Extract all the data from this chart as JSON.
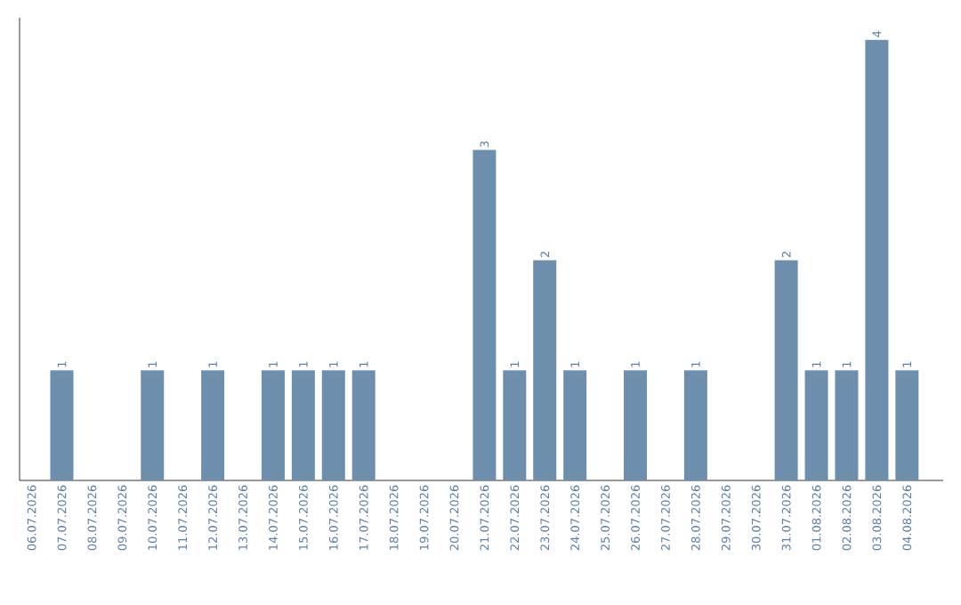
{
  "chart_data": {
    "type": "bar",
    "categories": [
      "06.07.2026",
      "07.07.2026",
      "08.07.2026",
      "09.07.2026",
      "10.07.2026",
      "11.07.2026",
      "12.07.2026",
      "13.07.2026",
      "14.07.2026",
      "15.07.2026",
      "16.07.2026",
      "17.07.2026",
      "18.07.2026",
      "19.07.2026",
      "20.07.2026",
      "21.07.2026",
      "22.07.2026",
      "23.07.2026",
      "24.07.2026",
      "25.07.2026",
      "26.07.2026",
      "27.07.2026",
      "28.07.2026",
      "29.07.2026",
      "30.07.2026",
      "31.07.2026",
      "01.08.2026",
      "02.08.2026",
      "03.08.2026",
      "04.08.2026"
    ],
    "values": [
      0,
      1,
      0,
      0,
      1,
      0,
      1,
      0,
      1,
      1,
      1,
      1,
      0,
      0,
      0,
      3,
      1,
      2,
      1,
      0,
      1,
      0,
      1,
      0,
      0,
      2,
      1,
      1,
      4,
      1
    ],
    "value_labels": [
      null,
      "1",
      null,
      null,
      "1",
      null,
      "1",
      null,
      "1",
      "1",
      "1",
      "1",
      null,
      null,
      null,
      "3",
      "1",
      "2",
      "1",
      null,
      "1",
      null,
      "1",
      null,
      null,
      "2",
      "1",
      "1",
      "4",
      "1"
    ],
    "color": "#6d8fad",
    "ylim": [
      0,
      4.2
    ],
    "tick_labels": "x"
  }
}
